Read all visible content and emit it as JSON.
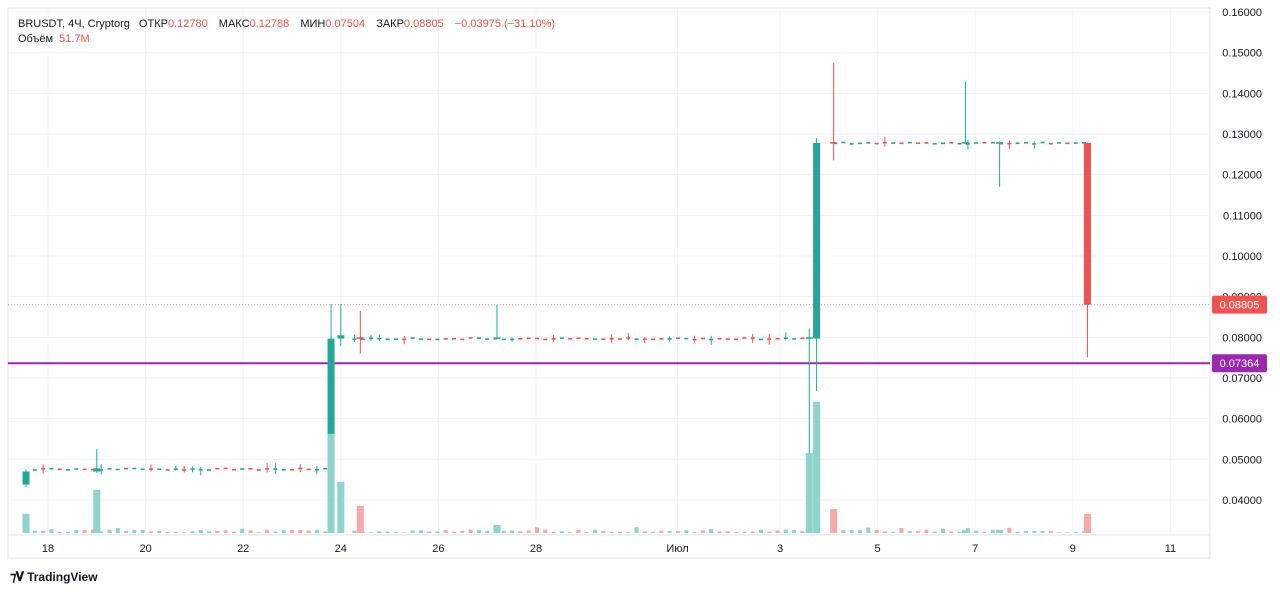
{
  "header": {
    "symbol": "BRUSDT, 4Ч, Cryptorg",
    "open_label": "ОТКР",
    "open_value": "0.12780",
    "high_label": "МАКС",
    "high_value": "0.12788",
    "low_label": "МИН",
    "low_value": "0.07504",
    "close_label": "ЗАКР",
    "close_value": "0.08805",
    "change": "−0.03975 (−31.10%)",
    "volume_label": "Объём",
    "volume_value": "51.7M"
  },
  "brand": {
    "name": "TradingView",
    "icon": "tradingview-logo-icon"
  },
  "colors": {
    "up": "#26a69a",
    "down": "#ef5350",
    "up_volume": "#8fd3cc",
    "down_volume": "#f7a9a7",
    "level_line": "#9c27b0",
    "grid": "#f0f3fa"
  },
  "chart_data": {
    "type": "candlestick",
    "symbol": "BRUSDT",
    "interval": "4Ч",
    "exchange": "Cryptorg",
    "y_range": [
      0.03,
      0.16
    ],
    "y_ticks": [
      "0.16000",
      "0.15000",
      "0.14000",
      "0.13000",
      "0.12000",
      "0.11000",
      "0.10000",
      "0.09000",
      "0.08000",
      "0.07000",
      "0.06000",
      "0.05000",
      "0.04000"
    ],
    "x_range": [
      17.5,
      11.8
    ],
    "x_ticks": [
      {
        "label": "18",
        "day": 18
      },
      {
        "label": "20",
        "day": 20
      },
      {
        "label": "22",
        "day": 22
      },
      {
        "label": "24",
        "day": 24
      },
      {
        "label": "26",
        "day": 26
      },
      {
        "label": "28",
        "day": 28
      },
      {
        "label": "Июл",
        "day": 30.9
      },
      {
        "label": "3",
        "day": 33
      },
      {
        "label": "5",
        "day": 35
      },
      {
        "label": "7",
        "day": 37
      },
      {
        "label": "9",
        "day": 39
      },
      {
        "label": "11",
        "day": 41
      }
    ],
    "last_price": {
      "label": "0.08805",
      "value": 0.08805
    },
    "level_line": {
      "label": "0.07364",
      "value": 0.07364
    },
    "segments": [
      {
        "from": 17.55,
        "to": 23.7,
        "base": 0.0476
      },
      {
        "from": 24.1,
        "to": 33.55,
        "base": 0.0797
      },
      {
        "from": 33.95,
        "to": 39.25,
        "base": 0.1278
      }
    ],
    "candles": [
      {
        "t": 17.55,
        "o": 0.0438,
        "h": 0.0475,
        "l": 0.0432,
        "c": 0.047,
        "v": 12
      },
      {
        "t": 19.0,
        "o": 0.047,
        "h": 0.0525,
        "l": 0.0466,
        "c": 0.0478,
        "v": 27
      },
      {
        "t": 23.8,
        "o": 0.0476,
        "h": 0.0882,
        "l": 0.047,
        "c": 0.0797,
        "v": 62
      },
      {
        "t": 24.0,
        "o": 0.0797,
        "h": 0.0882,
        "l": 0.0778,
        "c": 0.0805,
        "v": 32
      },
      {
        "t": 24.4,
        "o": 0.08,
        "h": 0.0865,
        "l": 0.076,
        "c": 0.0797,
        "v": 17
      },
      {
        "t": 27.2,
        "o": 0.0797,
        "h": 0.088,
        "l": 0.0795,
        "c": 0.08,
        "v": 5
      },
      {
        "t": 33.6,
        "o": 0.0797,
        "h": 0.0822,
        "l": 0.044,
        "c": 0.08,
        "v": 50
      },
      {
        "t": 33.75,
        "o": 0.0797,
        "h": 0.129,
        "l": 0.0668,
        "c": 0.1278,
        "v": 82
      },
      {
        "t": 34.1,
        "o": 0.128,
        "h": 0.1475,
        "l": 0.1235,
        "c": 0.1278,
        "v": 15
      },
      {
        "t": 36.8,
        "o": 0.1278,
        "h": 0.1428,
        "l": 0.1275,
        "c": 0.128,
        "v": 2
      },
      {
        "t": 37.5,
        "o": 0.1278,
        "h": 0.1282,
        "l": 0.117,
        "c": 0.128,
        "v": 2
      },
      {
        "t": 39.3,
        "o": 0.1278,
        "h": 0.12788,
        "l": 0.07504,
        "c": 0.08805,
        "v": 12
      }
    ]
  }
}
